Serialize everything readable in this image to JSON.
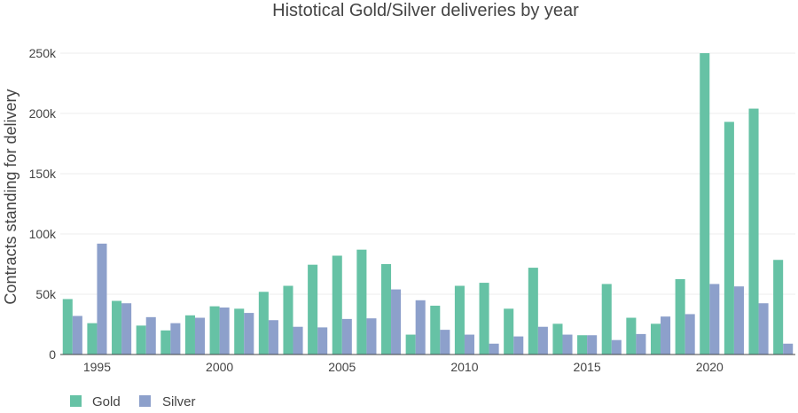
{
  "chart_data": {
    "type": "bar",
    "title": "Histotical Gold/Silver deliveries by year",
    "xlabel": "",
    "ylabel": "Contracts standing for delivery",
    "x": [
      1994,
      1995,
      1996,
      1997,
      1998,
      1999,
      2000,
      2001,
      2002,
      2003,
      2004,
      2005,
      2006,
      2007,
      2008,
      2009,
      2010,
      2011,
      2012,
      2013,
      2014,
      2015,
      2016,
      2017,
      2018,
      2019,
      2020,
      2021,
      2022,
      2023
    ],
    "x_ticks": [
      1995,
      2000,
      2005,
      2010,
      2015,
      2020
    ],
    "x_tick_labels": [
      "1995",
      "2000",
      "2005",
      "2010",
      "2015",
      "2020"
    ],
    "y_ticks": [
      0,
      50000,
      100000,
      150000,
      200000,
      250000
    ],
    "y_tick_labels": [
      "0",
      "50k",
      "100k",
      "150k",
      "200k",
      "250k"
    ],
    "ylim": [
      0,
      250000
    ],
    "xlim": [
      1993.5,
      2023.5
    ],
    "series": [
      {
        "name": "Gold",
        "color": "#66c2a5",
        "values": [
          46000,
          26000,
          44500,
          24000,
          20000,
          32500,
          40000,
          38000,
          52000,
          57000,
          74500,
          82000,
          87000,
          75000,
          16500,
          40500,
          57000,
          59500,
          38000,
          72000,
          25500,
          16000,
          58500,
          30500,
          25500,
          62500,
          250000,
          193000,
          204000,
          78500
        ]
      },
      {
        "name": "Silver",
        "color": "#8da0cb",
        "values": [
          32000,
          92000,
          42500,
          31000,
          26000,
          30500,
          39000,
          34500,
          28500,
          23000,
          22500,
          29500,
          30000,
          54000,
          45000,
          20500,
          16500,
          9000,
          15000,
          23000,
          16500,
          16000,
          12000,
          17000,
          31500,
          33500,
          58500,
          56500,
          42500,
          9000
        ]
      }
    ],
    "legend": [
      "Gold",
      "Silver"
    ],
    "legend_position": "bottom-left",
    "grid": true
  }
}
